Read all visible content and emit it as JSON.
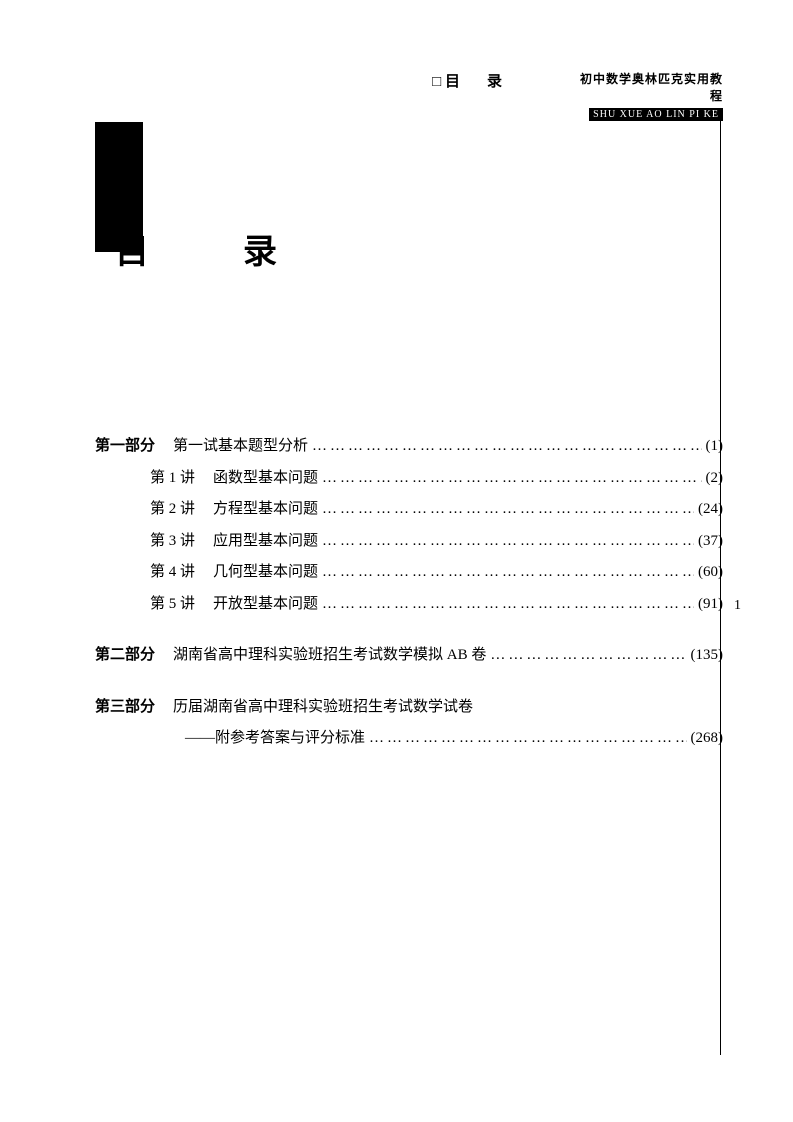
{
  "header": {
    "label": "目　录",
    "banner_top": "初中数学奥林匹克实用教程",
    "banner_bottom": "SHU XUE AO LIN PI KE"
  },
  "title": "目　录",
  "side_page_number": "1",
  "colors": {
    "text": "#000000",
    "background": "#ffffff",
    "block": "#000000"
  },
  "typography": {
    "body_fontsize": 15,
    "title_fontsize": 34,
    "banner_top_fontsize": 12,
    "banner_bottom_fontsize": 10
  },
  "toc": {
    "part1": {
      "label": "第一部分",
      "title": "第一试基本题型分析",
      "page": "(1)",
      "items": [
        {
          "lecture": "第 1 讲",
          "title": "函数型基本问题",
          "page": "(2)"
        },
        {
          "lecture": "第 2 讲",
          "title": "方程型基本问题",
          "page": "(24)"
        },
        {
          "lecture": "第 3 讲",
          "title": "应用型基本问题",
          "page": "(37)"
        },
        {
          "lecture": "第 4 讲",
          "title": "几何型基本问题",
          "page": "(60)"
        },
        {
          "lecture": "第 5 讲",
          "title": "开放型基本问题",
          "page": "(91)"
        }
      ]
    },
    "part2": {
      "label": "第二部分",
      "title": "湖南省高中理科实验班招生考试数学模拟 AB 卷",
      "page": "(135)"
    },
    "part3": {
      "label": "第三部分",
      "title": "历届湖南省高中理科实验班招生考试数学试卷",
      "subtitle": "——附参考答案与评分标准",
      "page": "(268)"
    }
  }
}
